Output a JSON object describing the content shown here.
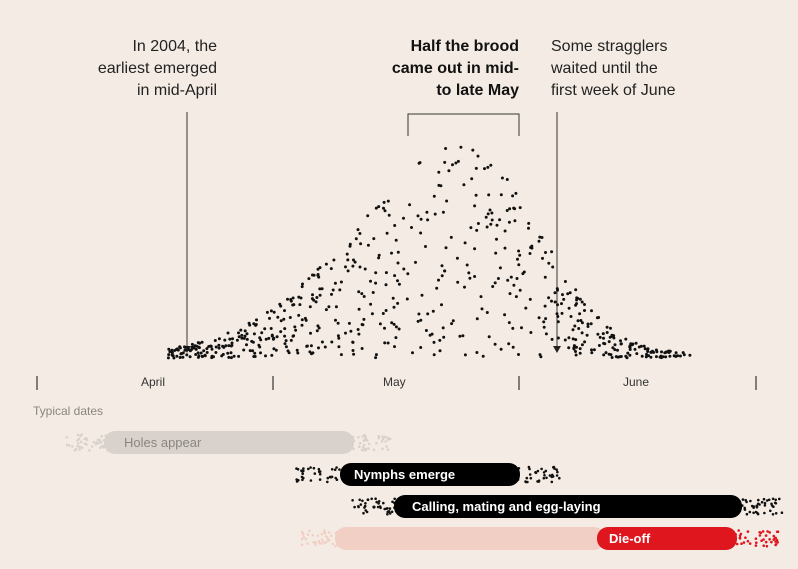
{
  "annotations": {
    "earliest": "In 2004, the\nearliest emerged\nin mid-April",
    "half": "Half the brood\ncame out in mid-\nto late May",
    "stragglers": "Some stragglers\nwaited until the\nfirst week of June"
  },
  "chart_data": {
    "type": "scatter",
    "description_units": "day-of-year dot distribution",
    "x_axis": {
      "ticks": [
        "April",
        "May",
        "June"
      ]
    },
    "emergence_range": {
      "earliest": "mid-April",
      "half_start": "mid-May",
      "half_end": "late May",
      "latest": "first week of June"
    },
    "typical_dates_label": "Typical dates",
    "phases": [
      {
        "name": "Holes appear",
        "start": "mid-March",
        "end": "late April",
        "color": "#d9d2cc"
      },
      {
        "name": "Nymphs emerge",
        "start": "late April",
        "end": "late May",
        "color": "#000000"
      },
      {
        "name": "Calling, mating and egg-laying",
        "start": "early May",
        "end": "late June",
        "color": "#000000"
      },
      {
        "name": "Die-off",
        "start": "early June",
        "end": "late June",
        "color": "#e0161e"
      }
    ]
  },
  "colors": {
    "background": "#f4ece4",
    "ink": "#111111",
    "accent_red": "#e0161e",
    "light_pink": "#f2cfc4",
    "faded_bar": "#d9d2cc"
  }
}
